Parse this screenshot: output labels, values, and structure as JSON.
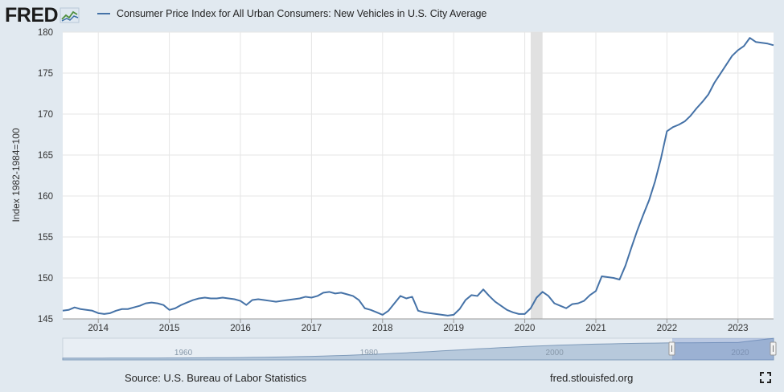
{
  "logo": {
    "text": "FRED"
  },
  "footer": {
    "source": "Source: U.S. Bureau of Labor Statistics",
    "url": "fred.stlouisfed.org"
  },
  "colors": {
    "series": "#4572a7",
    "recession": "#e1e1e1",
    "background": "#e1e9f0",
    "plot": "#ffffff"
  },
  "chart_data": {
    "type": "line",
    "ylabel": "Index 1982-1984=100",
    "ylim": [
      145,
      180
    ],
    "yticks": [
      145,
      150,
      155,
      160,
      165,
      170,
      175,
      180
    ],
    "xlim": [
      "2013-07",
      "2023-07"
    ],
    "xticks": [
      "2014",
      "2015",
      "2016",
      "2017",
      "2018",
      "2019",
      "2020",
      "2021",
      "2022",
      "2023"
    ],
    "grid": true,
    "legend_position": "top",
    "recession": [
      "2020-02",
      "2020-04"
    ],
    "navigator_labels": [
      "1960",
      "1980",
      "2000",
      "2020"
    ],
    "series": [
      {
        "name": "Consumer Price Index for All Urban Consumers: New Vehicles in U.S. City Average",
        "x": [
          "2013-07",
          "2013-08",
          "2013-09",
          "2013-10",
          "2013-11",
          "2013-12",
          "2014-01",
          "2014-02",
          "2014-03",
          "2014-04",
          "2014-05",
          "2014-06",
          "2014-07",
          "2014-08",
          "2014-09",
          "2014-10",
          "2014-11",
          "2014-12",
          "2015-01",
          "2015-02",
          "2015-03",
          "2015-04",
          "2015-05",
          "2015-06",
          "2015-07",
          "2015-08",
          "2015-09",
          "2015-10",
          "2015-11",
          "2015-12",
          "2016-01",
          "2016-02",
          "2016-03",
          "2016-04",
          "2016-05",
          "2016-06",
          "2016-07",
          "2016-08",
          "2016-09",
          "2016-10",
          "2016-11",
          "2016-12",
          "2017-01",
          "2017-02",
          "2017-03",
          "2017-04",
          "2017-05",
          "2017-06",
          "2017-07",
          "2017-08",
          "2017-09",
          "2017-10",
          "2017-11",
          "2017-12",
          "2018-01",
          "2018-02",
          "2018-03",
          "2018-04",
          "2018-05",
          "2018-06",
          "2018-07",
          "2018-08",
          "2018-09",
          "2018-10",
          "2018-11",
          "2018-12",
          "2019-01",
          "2019-02",
          "2019-03",
          "2019-04",
          "2019-05",
          "2019-06",
          "2019-07",
          "2019-08",
          "2019-09",
          "2019-10",
          "2019-11",
          "2019-12",
          "2020-01",
          "2020-02",
          "2020-03",
          "2020-04",
          "2020-05",
          "2020-06",
          "2020-07",
          "2020-08",
          "2020-09",
          "2020-10",
          "2020-11",
          "2020-12",
          "2021-01",
          "2021-02",
          "2021-03",
          "2021-04",
          "2021-05",
          "2021-06",
          "2021-07",
          "2021-08",
          "2021-09",
          "2021-10",
          "2021-11",
          "2021-12",
          "2022-01",
          "2022-02",
          "2022-03",
          "2022-04",
          "2022-05",
          "2022-06",
          "2022-07",
          "2022-08",
          "2022-09",
          "2022-10",
          "2022-11",
          "2022-12",
          "2023-01",
          "2023-02",
          "2023-03",
          "2023-04",
          "2023-05",
          "2023-06",
          "2023-07"
        ],
        "values": [
          146.0,
          146.1,
          146.4,
          146.2,
          146.1,
          146.0,
          145.7,
          145.6,
          145.7,
          146.0,
          146.2,
          146.2,
          146.4,
          146.6,
          146.9,
          147.0,
          146.9,
          146.7,
          146.1,
          146.3,
          146.7,
          147.0,
          147.3,
          147.5,
          147.6,
          147.5,
          147.5,
          147.6,
          147.5,
          147.4,
          147.2,
          146.7,
          147.3,
          147.4,
          147.3,
          147.2,
          147.1,
          147.2,
          147.3,
          147.4,
          147.5,
          147.7,
          147.6,
          147.8,
          148.2,
          148.3,
          148.1,
          148.2,
          148.0,
          147.8,
          147.3,
          146.3,
          146.1,
          145.8,
          145.5,
          146.0,
          146.9,
          147.8,
          147.5,
          147.7,
          146.0,
          145.8,
          145.7,
          145.6,
          145.5,
          145.4,
          145.5,
          146.2,
          147.3,
          147.9,
          147.8,
          148.6,
          147.8,
          147.1,
          146.6,
          146.1,
          145.8,
          145.6,
          145.6,
          146.3,
          147.6,
          148.3,
          147.8,
          146.9,
          146.6,
          146.3,
          146.8,
          146.9,
          147.2,
          147.9,
          148.4,
          150.2,
          150.1,
          150.0,
          149.8,
          151.5,
          153.7,
          155.8,
          157.7,
          159.5,
          161.8,
          164.6,
          167.9,
          168.4,
          168.7,
          169.1,
          169.8,
          170.7,
          171.5,
          172.4,
          173.8,
          174.9,
          176.0,
          177.1,
          177.8,
          178.3,
          179.3,
          178.8,
          178.7,
          178.6,
          178.4
        ]
      }
    ]
  }
}
